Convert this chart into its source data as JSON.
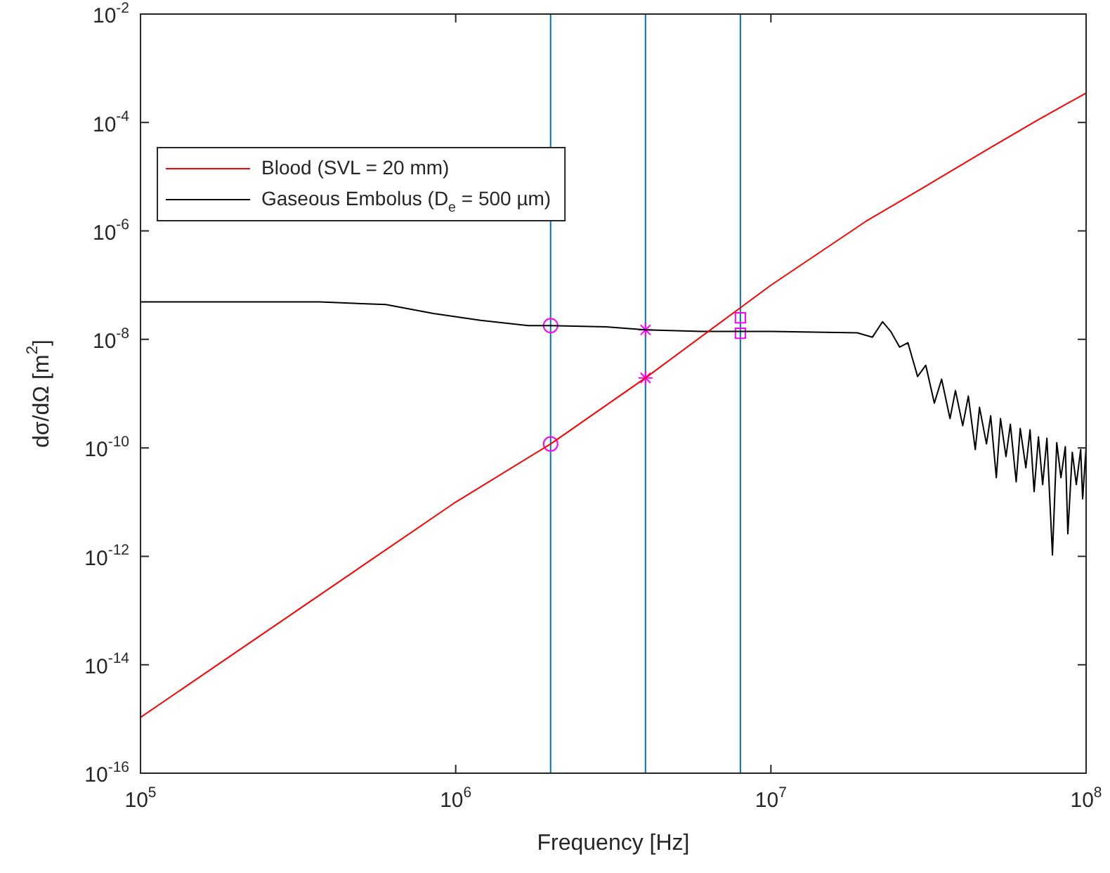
{
  "chart_data": {
    "type": "line",
    "xlabel": "Frequency [Hz]",
    "ylabel": "dσ/dΩ [m$^{2}$]",
    "log": "xy",
    "xlim": [
      100000,
      100000000
    ],
    "ylim": [
      1e-16,
      0.01
    ],
    "xticks": [
      {
        "value": 100000,
        "label": "10$^{5}$"
      },
      {
        "value": 1000000,
        "label": "10$^{6}$"
      },
      {
        "value": 10000000,
        "label": "10$^{7}$"
      },
      {
        "value": 100000000,
        "label": "10$^{8}$"
      }
    ],
    "yticks": [
      {
        "value": 1e-16,
        "label": "10$^{-16}$"
      },
      {
        "value": 1e-14,
        "label": "10$^{-14}$"
      },
      {
        "value": 1e-12,
        "label": "10$^{-12}$"
      },
      {
        "value": 1e-10,
        "label": "10$^{-10}$"
      },
      {
        "value": 1e-08,
        "label": "10$^{-8}$"
      },
      {
        "value": 1e-06,
        "label": "10$^{-6}$"
      },
      {
        "value": 0.0001,
        "label": "10$^{-4}$"
      },
      {
        "value": 0.01,
        "label": "10$^{-2}$"
      }
    ],
    "legend": "top left",
    "line_style": "solid",
    "series": [
      {
        "name": "Blood (SVL = 20 mm)",
        "color": "#ff0000",
        "x": [
          100000,
          1000000,
          2000000,
          4000000,
          10000000,
          20000000,
          30000000,
          50000000,
          70000000,
          100000000
        ],
        "values": [
          1.07e-15,
          1e-11,
          1.18e-10,
          1.95e-09,
          1e-07,
          1.5e-06,
          6e-06,
          3.5e-05,
          0.00011,
          0.00035
        ]
      },
      {
        "name": "Gaseous Embolus (D$_{e}$ = 500 µm)",
        "color": "#000000",
        "x": [
          100000,
          370000,
          600000,
          850000,
          1200000,
          1700000,
          2000000,
          3000000,
          4000000,
          6000000,
          10000000,
          18800000,
          21000000,
          22600000,
          24000000,
          25600000,
          27200000,
          29200000,
          31000000,
          33000000,
          34800000,
          37000000,
          38500000,
          40600000,
          42300000,
          44500000,
          45900000,
          48300000,
          49800000,
          51900000,
          53500000,
          55700000,
          57500000,
          60000000,
          61800000,
          64400000,
          66400000,
          68400000,
          70600000,
          72800000,
          75100000,
          78200000,
          80700000,
          83200000,
          85900000,
          87500000,
          90400000,
          93100000,
          96100000,
          97500000,
          100000000
        ],
        "values": [
          4.9e-08,
          4.9e-08,
          4.4e-08,
          3e-08,
          2.25e-08,
          1.8e-08,
          1.8e-08,
          1.7e-08,
          1.5e-08,
          1.4e-08,
          1.4e-08,
          1.32e-08,
          1.1e-08,
          2.12e-08,
          1.4e-08,
          7.2e-09,
          8.7e-09,
          2.07e-09,
          3.33e-09,
          6.7e-10,
          1.84e-09,
          3.46e-10,
          1.14e-09,
          2.56e-10,
          8.98e-10,
          9.3e-11,
          5.57e-10,
          1.18e-10,
          3.9e-10,
          2.82e-11,
          3.46e-10,
          6.9e-11,
          2.72e-10,
          2.36e-11,
          2.28e-10,
          4.29e-11,
          2.15e-10,
          1.56e-11,
          1.59e-10,
          2.1e-11,
          1.5e-10,
          1.06e-12,
          1.25e-10,
          2.82e-11,
          1.05e-10,
          2.6e-12,
          8.3e-11,
          2.1e-11,
          9.3e-11,
          1.15e-11,
          1.05e-10
        ]
      },
      {
        "type": "scatter",
        "marker": "circle",
        "color": "#ff00ff",
        "x": [
          2000000,
          2000000
        ],
        "values": [
          1.8e-08,
          1.18e-10
        ]
      },
      {
        "type": "scatter",
        "marker": "cross",
        "color": "#ff00ff",
        "x": [
          4000000,
          4000000
        ],
        "values": [
          1.5e-08,
          1.95e-09
        ]
      },
      {
        "type": "scatter",
        "marker": "square",
        "color": "#ff00ff",
        "x": [
          8000000,
          8000000
        ],
        "values": [
          2.5e-08,
          1.3e-08
        ]
      }
    ],
    "ref_lines": [
      {
        "axis": "x",
        "value": 2000000,
        "color": "#0072bd"
      },
      {
        "axis": "x",
        "value": 4000000,
        "color": "#0072bd"
      },
      {
        "axis": "x",
        "value": 8000000,
        "color": "#0072bd"
      }
    ]
  }
}
